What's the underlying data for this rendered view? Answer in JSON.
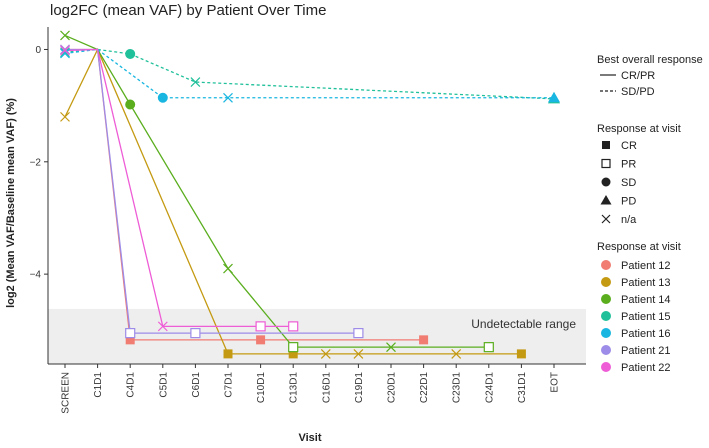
{
  "chart_data": {
    "type": "line",
    "title": "log2FC (mean VAF) by Patient Over Time",
    "xlabel": "Visit",
    "ylabel": "log2 (Mean VAF/Baseline mean VAF) (%)",
    "categories": [
      "SCREEN",
      "C1D1",
      "C4D1",
      "C5D1",
      "C6D1",
      "C7D1",
      "C10D1",
      "C13D1",
      "C16D1",
      "C19D1",
      "C20D1",
      "C22D1",
      "C23D1",
      "C24D1",
      "C31D1",
      "EOT"
    ],
    "ylim": [
      -5.6,
      0.4
    ],
    "yticks": [
      0,
      -2,
      -4
    ],
    "undetectable_range": {
      "label": "Undetectable range",
      "ymin": -5.6,
      "ymax": -4.62
    },
    "series": [
      {
        "name": "Patient 12",
        "color": "#f07c72",
        "dash": "solid",
        "points": [
          {
            "x": "SCREEN",
            "y": 0,
            "shape": "x"
          },
          {
            "x": "C1D1",
            "y": 0,
            "shape": "none"
          },
          {
            "x": "C4D1",
            "y": -5.17,
            "shape": "filled-square"
          },
          {
            "x": "C10D1",
            "y": -5.17,
            "shape": "filled-square"
          },
          {
            "x": "C22D1",
            "y": -5.17,
            "shape": "filled-square"
          }
        ]
      },
      {
        "name": "Patient 13",
        "color": "#c49a12",
        "dash": "solid",
        "points": [
          {
            "x": "SCREEN",
            "y": -1.2,
            "shape": "x"
          },
          {
            "x": "C1D1",
            "y": 0,
            "shape": "none"
          },
          {
            "x": "C7D1",
            "y": -5.42,
            "shape": "filled-square"
          },
          {
            "x": "C13D1",
            "y": -5.42,
            "shape": "filled-square"
          },
          {
            "x": "C16D1",
            "y": -5.42,
            "shape": "x"
          },
          {
            "x": "C19D1",
            "y": -5.42,
            "shape": "x"
          },
          {
            "x": "C23D1",
            "y": -5.42,
            "shape": "x"
          },
          {
            "x": "C31D1",
            "y": -5.42,
            "shape": "filled-square"
          }
        ]
      },
      {
        "name": "Patient 14",
        "color": "#5aae1e",
        "dash": "solid",
        "points": [
          {
            "x": "SCREEN",
            "y": 0.25,
            "shape": "x"
          },
          {
            "x": "C1D1",
            "y": 0,
            "shape": "none"
          },
          {
            "x": "C4D1",
            "y": -0.98,
            "shape": "filled-circle"
          },
          {
            "x": "C7D1",
            "y": -3.9,
            "shape": "x"
          },
          {
            "x": "C13D1",
            "y": -5.3,
            "shape": "open-square"
          },
          {
            "x": "C20D1",
            "y": -5.3,
            "shape": "x"
          },
          {
            "x": "C24D1",
            "y": -5.3,
            "shape": "open-square"
          }
        ]
      },
      {
        "name": "Patient 15",
        "color": "#20c09a",
        "dash": "dashed",
        "points": [
          {
            "x": "SCREEN",
            "y": -0.05,
            "shape": "x"
          },
          {
            "x": "C1D1",
            "y": 0,
            "shape": "none"
          },
          {
            "x": "C4D1",
            "y": -0.08,
            "shape": "filled-circle"
          },
          {
            "x": "C6D1",
            "y": -0.58,
            "shape": "x"
          },
          {
            "x": "EOT",
            "y": -0.88,
            "shape": "filled-triangle"
          }
        ]
      },
      {
        "name": "Patient 16",
        "color": "#18b6e0",
        "dash": "dashed",
        "points": [
          {
            "x": "SCREEN",
            "y": -0.07,
            "shape": "x"
          },
          {
            "x": "C1D1",
            "y": 0,
            "shape": "none"
          },
          {
            "x": "C5D1",
            "y": -0.86,
            "shape": "filled-circle"
          },
          {
            "x": "C7D1",
            "y": -0.86,
            "shape": "x"
          },
          {
            "x": "EOT",
            "y": -0.86,
            "shape": "filled-triangle"
          }
        ]
      },
      {
        "name": "Patient 21",
        "color": "#9d8ce8",
        "dash": "solid",
        "points": [
          {
            "x": "SCREEN",
            "y": 0,
            "shape": "x"
          },
          {
            "x": "C1D1",
            "y": 0,
            "shape": "none"
          },
          {
            "x": "C4D1",
            "y": -5.05,
            "shape": "open-square"
          },
          {
            "x": "C6D1",
            "y": -5.05,
            "shape": "open-square"
          },
          {
            "x": "C19D1",
            "y": -5.05,
            "shape": "open-square"
          }
        ]
      },
      {
        "name": "Patient 22",
        "color": "#ee5cd6",
        "dash": "solid",
        "points": [
          {
            "x": "SCREEN",
            "y": -0.02,
            "shape": "x"
          },
          {
            "x": "C1D1",
            "y": 0,
            "shape": "none"
          },
          {
            "x": "C5D1",
            "y": -4.93,
            "shape": "x"
          },
          {
            "x": "C10D1",
            "y": -4.93,
            "shape": "open-square"
          },
          {
            "x": "C13D1",
            "y": -4.93,
            "shape": "open-square"
          }
        ]
      }
    ],
    "legend": {
      "placement": "right",
      "line_title": "Best overall response",
      "line_items": [
        {
          "label": "CR/PR",
          "dash": "solid"
        },
        {
          "label": "SD/PD",
          "dash": "dashed"
        }
      ],
      "shape_title": "Response at visit",
      "shape_items": [
        {
          "label": "CR",
          "shape": "filled-square"
        },
        {
          "label": "PR",
          "shape": "open-square"
        },
        {
          "label": "SD",
          "shape": "filled-circle"
        },
        {
          "label": "PD",
          "shape": "filled-triangle"
        },
        {
          "label": "n/a",
          "shape": "x"
        }
      ],
      "color_title": "Response at visit"
    },
    "grid": false
  }
}
